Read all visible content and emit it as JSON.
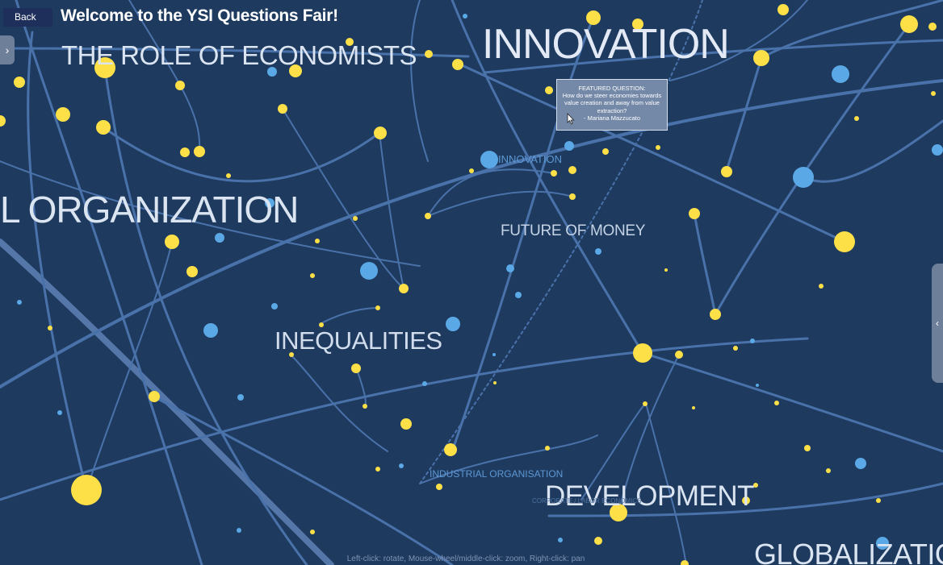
{
  "header": {
    "back_label": "Back",
    "title": "Welcome to the YSI Questions Fair!"
  },
  "topics": [
    {
      "label": "THE ROLE OF ECONOMISTS",
      "tier": "big"
    },
    {
      "label": "INNOVATION",
      "tier": "big"
    },
    {
      "label": "L ORGANIZATION",
      "tier": "big"
    },
    {
      "label": "INNOVATION",
      "tier": "small"
    },
    {
      "label": "FUTURE OF MONEY",
      "tier": "medium"
    },
    {
      "label": "INEQUALITIES",
      "tier": "big"
    },
    {
      "label": "INDUSTRIAL ORGANISATION",
      "tier": "small"
    },
    {
      "label": "DEVELOPMENT",
      "tier": "big"
    },
    {
      "label": "CORPORATE / LABOR ECONOMICS",
      "tier": "faint"
    },
    {
      "label": "GLOBALIZATIO",
      "tier": "big"
    }
  ],
  "featured": {
    "heading": "FEATURED QUESTION:",
    "question": "How do we steer economies towards value creation and away from value extraction?",
    "author": "- Mariana Mazzucato"
  },
  "toggles": {
    "left_icon": "chevron-right-icon",
    "right_icon": "chevron-left-icon",
    "left_glyph": "›",
    "right_glyph": "‹"
  },
  "hint_text": "Left-click: rotate, Mouse-wheel/middle-click: zoom, Right-click: pan",
  "colors": {
    "background": "#1e3a5f",
    "edge": "#4a72aa",
    "node_yellow": "#fde047",
    "node_blue": "#5aa9e6",
    "topic_text": "#d9e2ef"
  }
}
